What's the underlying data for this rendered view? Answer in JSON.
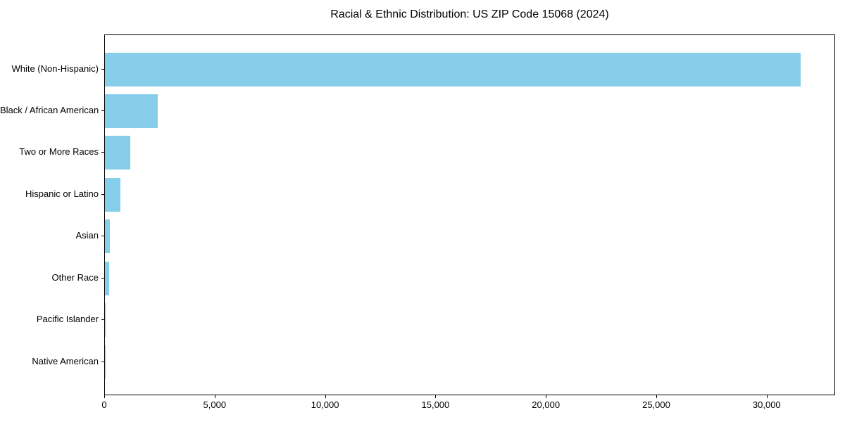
{
  "title": "Racial & Ethnic Distribution: US ZIP Code 15068 (2024)",
  "colors": {
    "bar": "#87CEEB",
    "axis": "#000000",
    "text": "#000000",
    "background": "#FFFFFF"
  },
  "chart_data": {
    "type": "bar",
    "orientation": "horizontal",
    "title": "Racial & Ethnic Distribution: US ZIP Code 15068 (2024)",
    "categories": [
      "White (Non-Hispanic)",
      "Black / African American",
      "Two or More Races",
      "Hispanic or Latino",
      "Asian",
      "Other Race",
      "Pacific Islander",
      "Native American"
    ],
    "values": [
      31500,
      2400,
      1150,
      700,
      230,
      190,
      20,
      10
    ],
    "xlabel": "",
    "ylabel": "",
    "xlim": [
      0,
      33100
    ],
    "xticks": [
      0,
      5000,
      10000,
      15000,
      20000,
      25000,
      30000
    ],
    "xtick_labels": [
      "0",
      "5,000",
      "10,000",
      "15,000",
      "20,000",
      "25,000",
      "30,000"
    ],
    "grid": false,
    "legend": null,
    "bar_color": "#87CEEB",
    "sort_order": "descending"
  }
}
